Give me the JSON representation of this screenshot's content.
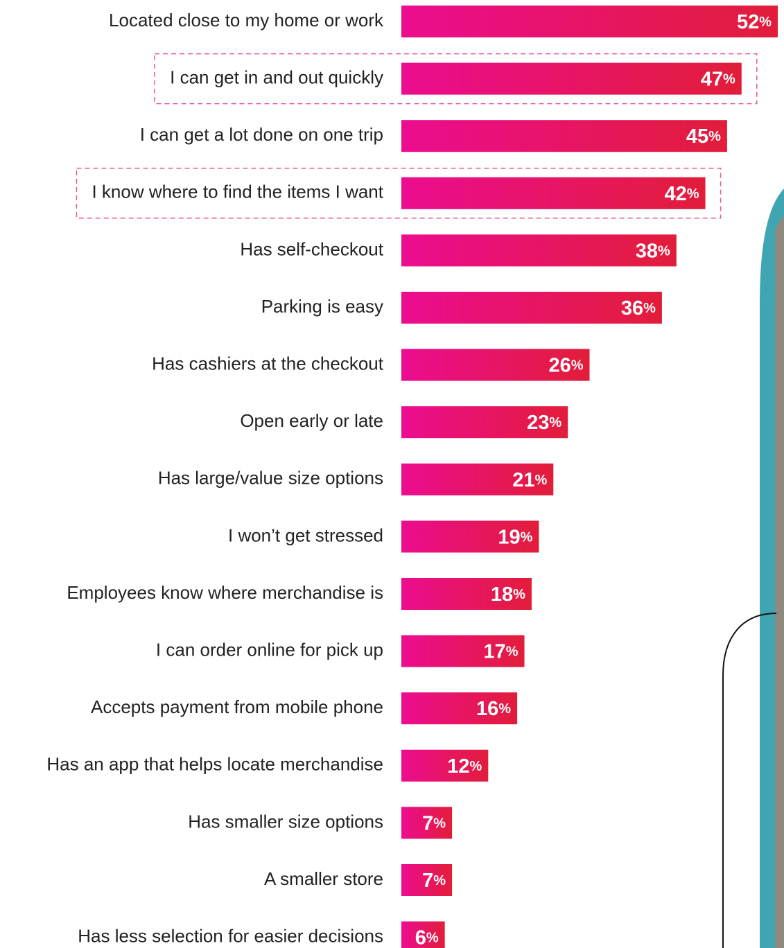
{
  "chart_data": {
    "type": "hbar",
    "categories": [
      "Located close to my home or work",
      "I can get in and out quickly",
      "I can get a lot done on one trip",
      "I know where to find the items I want",
      "Has self-checkout",
      "Parking is easy",
      "Has cashiers at the checkout",
      "Open early or late",
      "Has large/value size options",
      "I won’t get stressed",
      "Employees know where merchandise is",
      "I can order online for pick up",
      "Accepts payment from mobile phone",
      "Has an app that helps locate merchandise",
      "Has smaller size options",
      "A smaller store",
      "Has less selection for easier decisions"
    ],
    "values": [
      52,
      47,
      45,
      42,
      38,
      36,
      26,
      23,
      21,
      19,
      18,
      17,
      16,
      12,
      7,
      7,
      6
    ],
    "value_labels": [
      "52%",
      "47%",
      "45%",
      "42%",
      "38%",
      "36%",
      "26%",
      "23%",
      "21%",
      "19%",
      "18%",
      "17%",
      "16%",
      "12%",
      "7%",
      "7%",
      "6%"
    ],
    "gradient": [
      "#ec0c90",
      "#e21d3a"
    ],
    "highlighted": [
      1,
      3
    ]
  }
}
